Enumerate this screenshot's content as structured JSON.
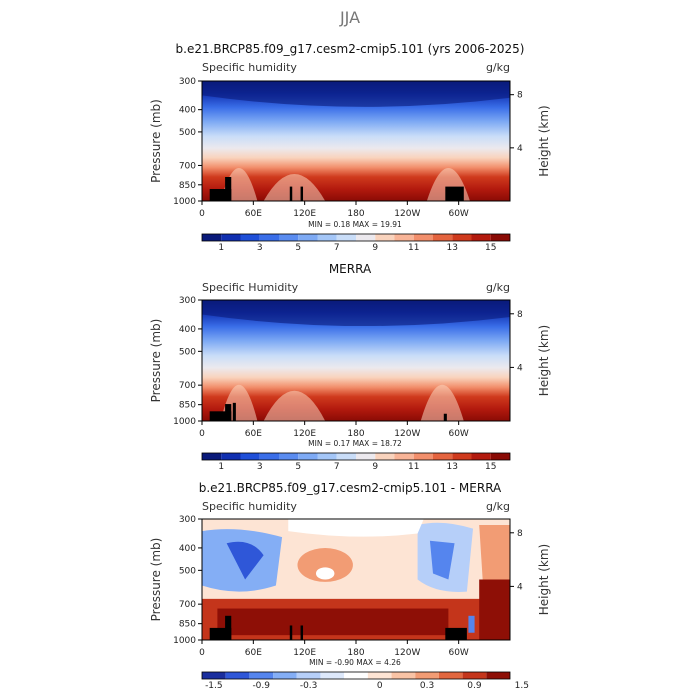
{
  "page_title": "JJA",
  "chart_data": [
    {
      "type": "heatmap",
      "title": "b.e21.BRCP85.f09_g17.cesm2-cmip5.101 (yrs 2006-2025)",
      "variable": "Specific humidity",
      "units": "g/kg",
      "ylabel": "Pressure (mb)",
      "ylabel_right": "Height (km)",
      "x_ticks": [
        "0",
        "60E",
        "120E",
        "180",
        "120W",
        "60W"
      ],
      "y_ticks": [
        "300",
        "400",
        "500",
        "700",
        "850",
        "1000"
      ],
      "y_ticks_right": [
        "8",
        "4"
      ],
      "stats_text": "MIN =     0.18   MAX =   19.91",
      "colorbar_labels": [
        "1",
        "3",
        "5",
        "7",
        "9",
        "11",
        "13",
        "15"
      ],
      "min": 0.18,
      "max": 19.91
    },
    {
      "type": "heatmap",
      "title": "MERRA",
      "variable": "Specific Humidity",
      "units": "g/kg",
      "ylabel": "Pressure (mb)",
      "ylabel_right": "Height (km)",
      "x_ticks": [
        "0",
        "60E",
        "120E",
        "180",
        "120W",
        "60W"
      ],
      "y_ticks": [
        "300",
        "400",
        "500",
        "700",
        "850",
        "1000"
      ],
      "y_ticks_right": [
        "8",
        "4"
      ],
      "stats_text": "MIN =     0.17   MAX =   18.72",
      "colorbar_labels": [
        "1",
        "3",
        "5",
        "7",
        "9",
        "11",
        "13",
        "15"
      ],
      "min": 0.17,
      "max": 18.72
    },
    {
      "type": "heatmap",
      "title": "b.e21.BRCP85.f09_g17.cesm2-cmip5.101 - MERRA",
      "variable": "Specific humidity",
      "units": "g/kg",
      "ylabel": "Pressure (mb)",
      "ylabel_right": "Height (km)",
      "x_ticks": [
        "0",
        "60E",
        "120E",
        "180",
        "120W",
        "60W"
      ],
      "y_ticks": [
        "300",
        "400",
        "500",
        "700",
        "850",
        "1000"
      ],
      "y_ticks_right": [
        "8",
        "4"
      ],
      "stats_text": "MIN =   -0.90   MAX =     4.26",
      "colorbar_labels": [
        "-1.5",
        "-0.9",
        "-0.3",
        "0",
        "0.3",
        "0.9",
        "1.5"
      ],
      "min": -0.9,
      "max": 4.26
    }
  ],
  "colors": {
    "sequential": [
      "#0a1a7a",
      "#102fb0",
      "#1f4fd8",
      "#3a6ee8",
      "#5a8cf0",
      "#7eaaf4",
      "#a4c6f7",
      "#c9ddf8",
      "#ece9ee",
      "#f9d3bd",
      "#f8b497",
      "#f28f6c",
      "#e4643f",
      "#cf3a1d",
      "#b31a0e",
      "#8a0b05"
    ],
    "diverging": [
      "#1a2e9e",
      "#2f57d8",
      "#5585ee",
      "#84aef5",
      "#b6cff9",
      "#dde8fa",
      "#ffffff",
      "#fde4d4",
      "#f9c3a5",
      "#f29c74",
      "#e2673f",
      "#c4351b",
      "#8e0f06"
    ]
  }
}
